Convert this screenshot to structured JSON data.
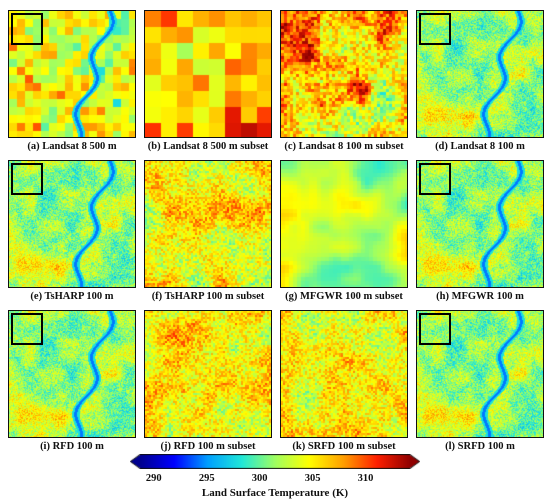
{
  "panels": [
    {
      "caption": "(a) Landsat 8 500 m",
      "style": "block",
      "block": 8,
      "inset": true,
      "river": true
    },
    {
      "caption": "(b) Landsat 8 500 m subset",
      "style": "block",
      "block": 16,
      "inset": false,
      "river": false
    },
    {
      "caption": "(c) Landsat 8 100 m subset",
      "style": "hot",
      "block": 3,
      "inset": false,
      "river": false
    },
    {
      "caption": "(d) Landsat 8 100 m",
      "style": "fine",
      "block": 1,
      "inset": true,
      "river": true
    },
    {
      "caption": "(e) TsHARP 100 m",
      "style": "fine",
      "block": 1,
      "inset": true,
      "river": true
    },
    {
      "caption": "(f) TsHARP 100 m subset",
      "style": "medium",
      "block": 2,
      "inset": false,
      "river": false
    },
    {
      "caption": "(g) MFGWR 100 m subset",
      "style": "smooth",
      "block": 4,
      "inset": false,
      "river": false
    },
    {
      "caption": "(h) MFGWR 100 m",
      "style": "fine",
      "block": 1,
      "inset": true,
      "river": true
    },
    {
      "caption": "(i) RFD 100 m",
      "style": "fine",
      "block": 1,
      "inset": true,
      "river": true
    },
    {
      "caption": "(j) RFD 100 m subset",
      "style": "medium",
      "block": 2,
      "inset": false,
      "river": false
    },
    {
      "caption": "(k) SRFD 100 m subset",
      "style": "medium",
      "block": 2,
      "inset": false,
      "river": false
    },
    {
      "caption": "(l) SRFD 100 m",
      "style": "fine",
      "block": 1,
      "inset": true,
      "river": true
    }
  ],
  "colorbar": {
    "label": "Land Surface Temperature (K)",
    "min": 288.5,
    "max": 314,
    "ticks": [
      290,
      295,
      300,
      305,
      310
    ]
  },
  "colors": {
    "jet": [
      "#00008f",
      "#0000ff",
      "#00a0ff",
      "#20e8d8",
      "#a0ff60",
      "#ffff00",
      "#ffa000",
      "#ff2000",
      "#8f0000"
    ]
  }
}
